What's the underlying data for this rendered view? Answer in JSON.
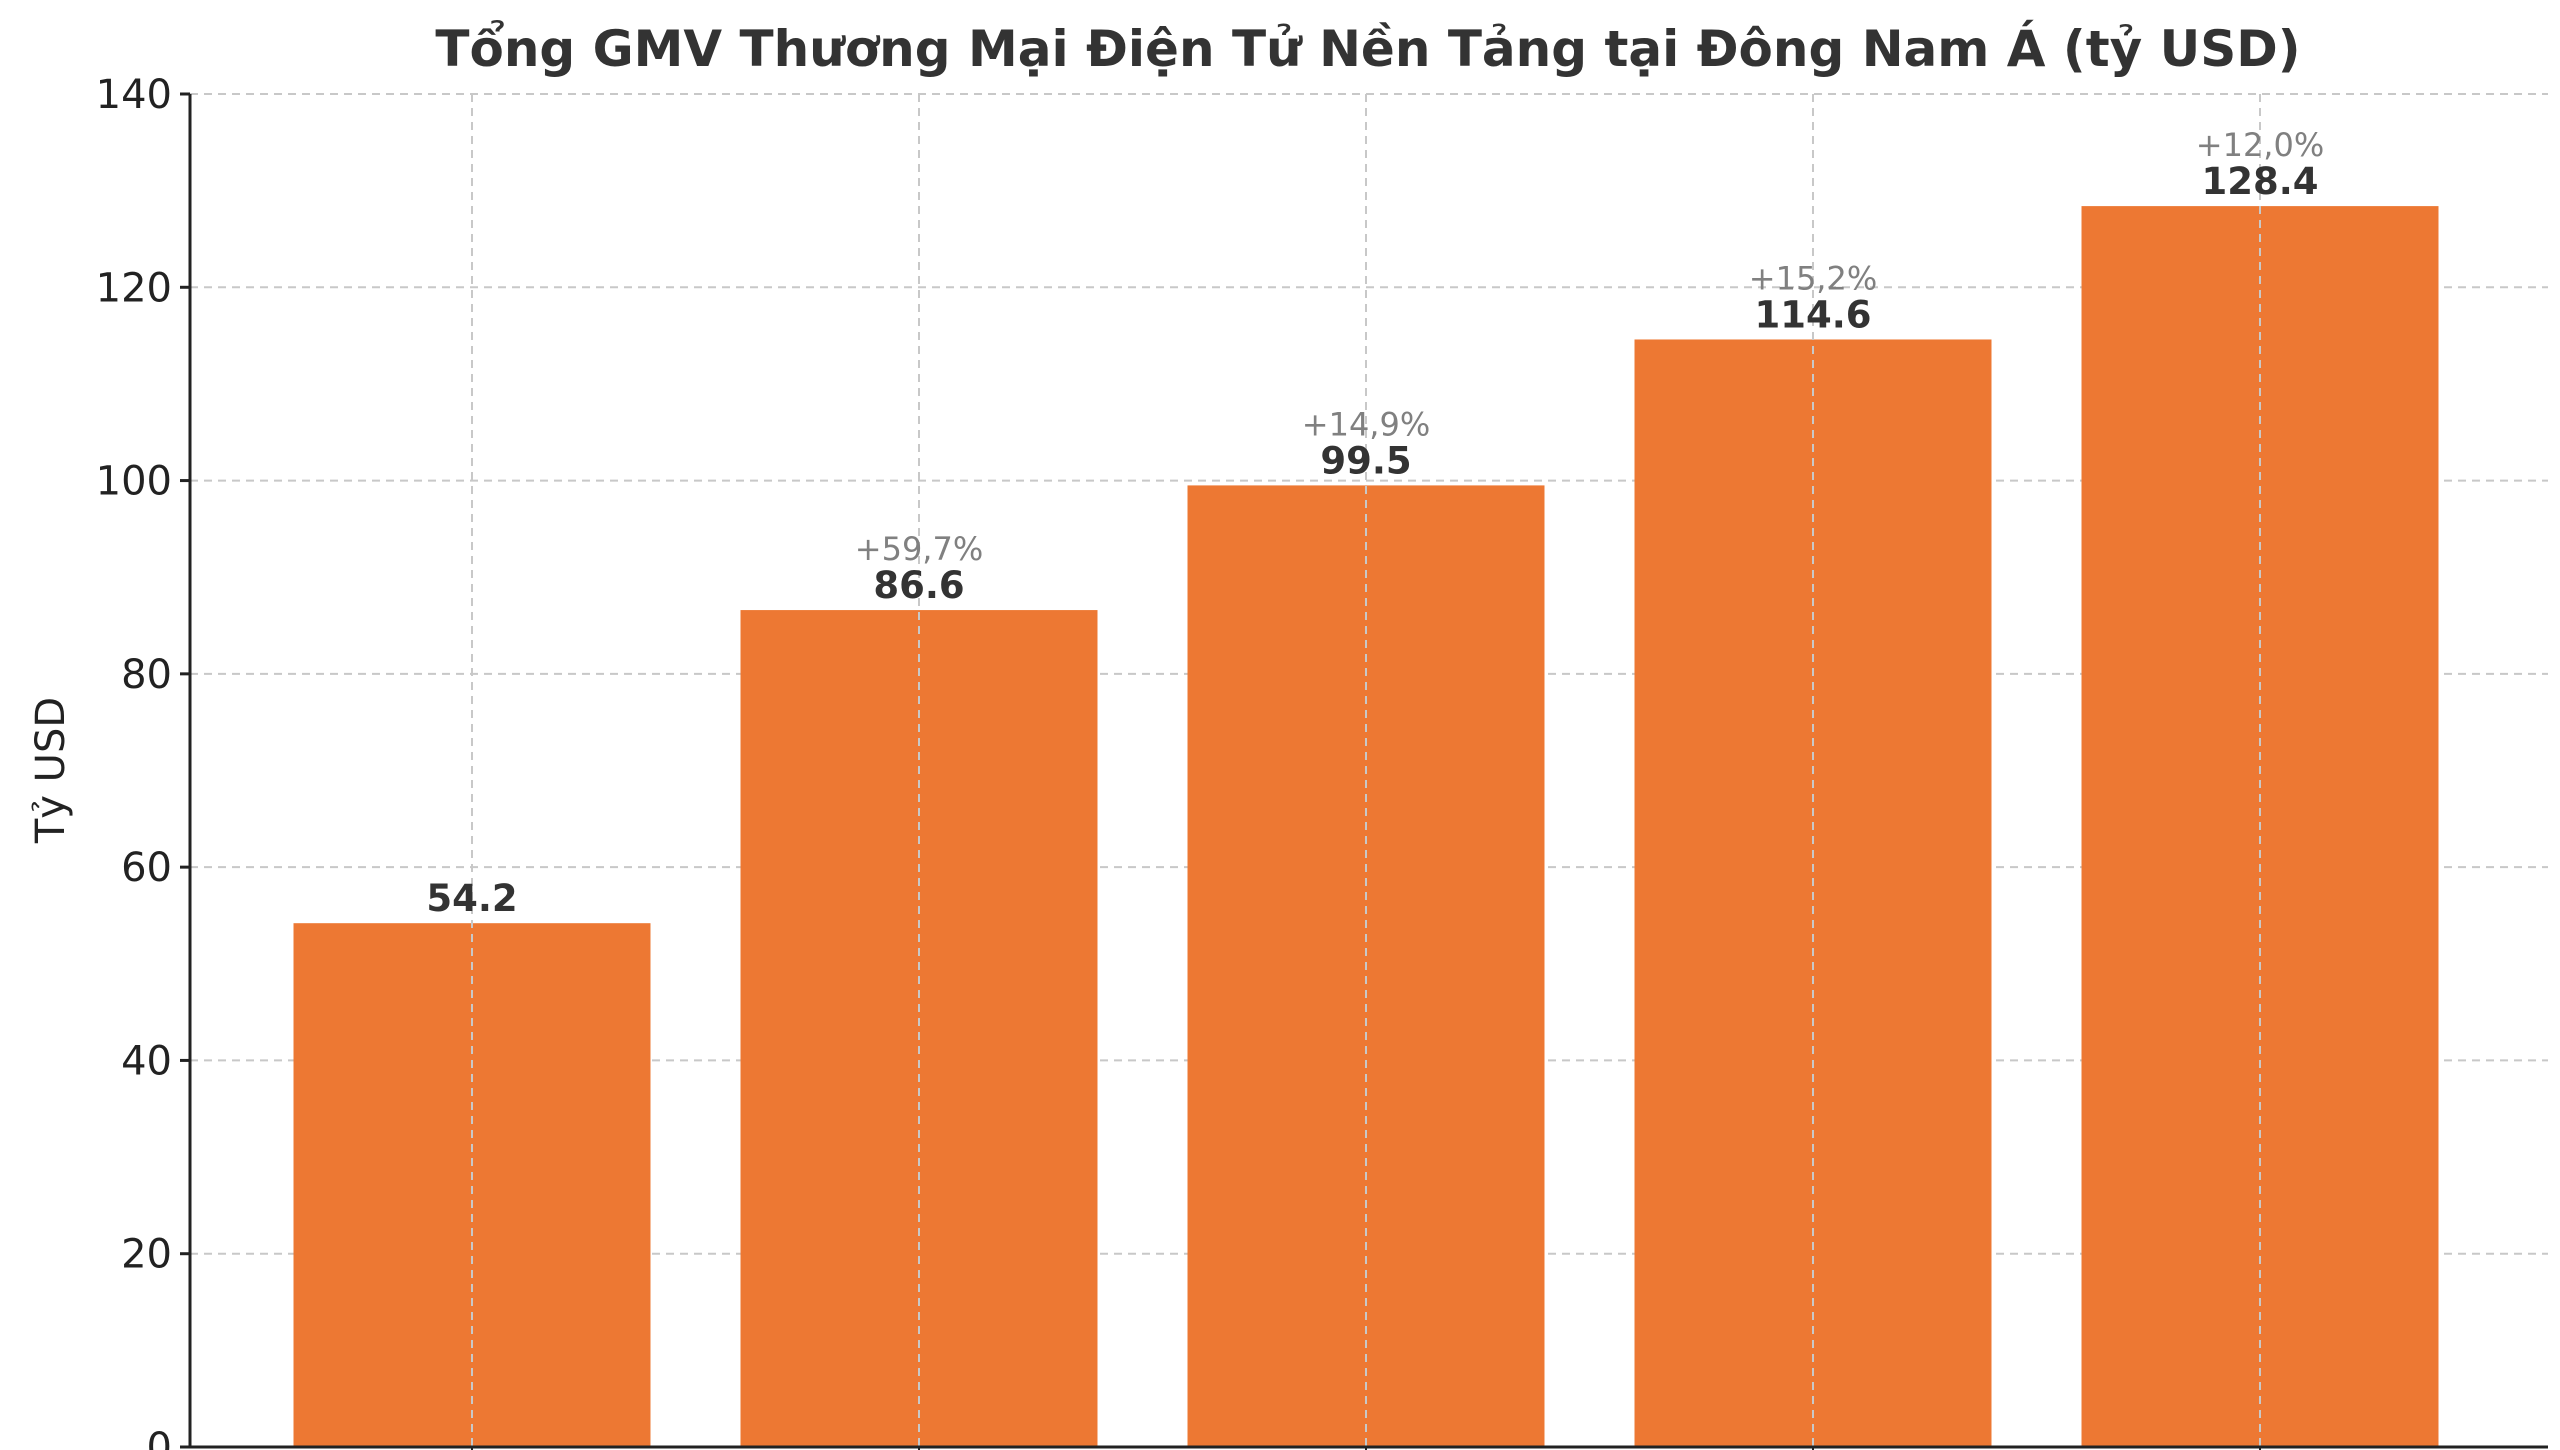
{
  "chart_data": {
    "type": "bar",
    "title": "Tổng GMV Thương Mại Điện Tử Nền Tảng tại Đông Nam Á (tỷ USD)",
    "xlabel": "",
    "ylabel": "Tỷ USD",
    "ylim": [
      0,
      140
    ],
    "yticks": [
      0,
      20,
      40,
      60,
      80,
      100,
      120,
      140
    ],
    "ytick_labels": [
      "0",
      "20",
      "40",
      "60",
      "80",
      "100",
      "120",
      "140"
    ],
    "grid": true,
    "bar_color": "#ED7833",
    "grid_color": "#C8C8C8",
    "categories": [
      "",
      "",
      "",
      "",
      ""
    ],
    "values": [
      54.2,
      86.6,
      99.5,
      114.6,
      128.4
    ],
    "value_labels": [
      "54.2",
      "86.6",
      "99.5",
      "114.6",
      "128.4"
    ],
    "growth_labels": [
      "",
      "+59,7%",
      "+14,9%",
      "+15,2%",
      "+12,0%"
    ]
  }
}
